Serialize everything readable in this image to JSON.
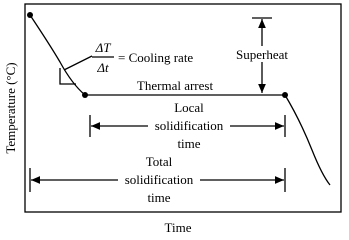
{
  "axes": {
    "y_label": "Temperature (°C)",
    "x_label": "Time"
  },
  "annotations": {
    "cooling_rate": {
      "numerator": "ΔT",
      "denominator": "Δt",
      "text": "= Cooling rate"
    },
    "thermal_arrest": "Thermal arrest",
    "superheat": "Superheat",
    "local_solidification": [
      "Local",
      "solidification",
      "time"
    ],
    "total_solidification": [
      "Total",
      "solidification",
      "time"
    ]
  }
}
